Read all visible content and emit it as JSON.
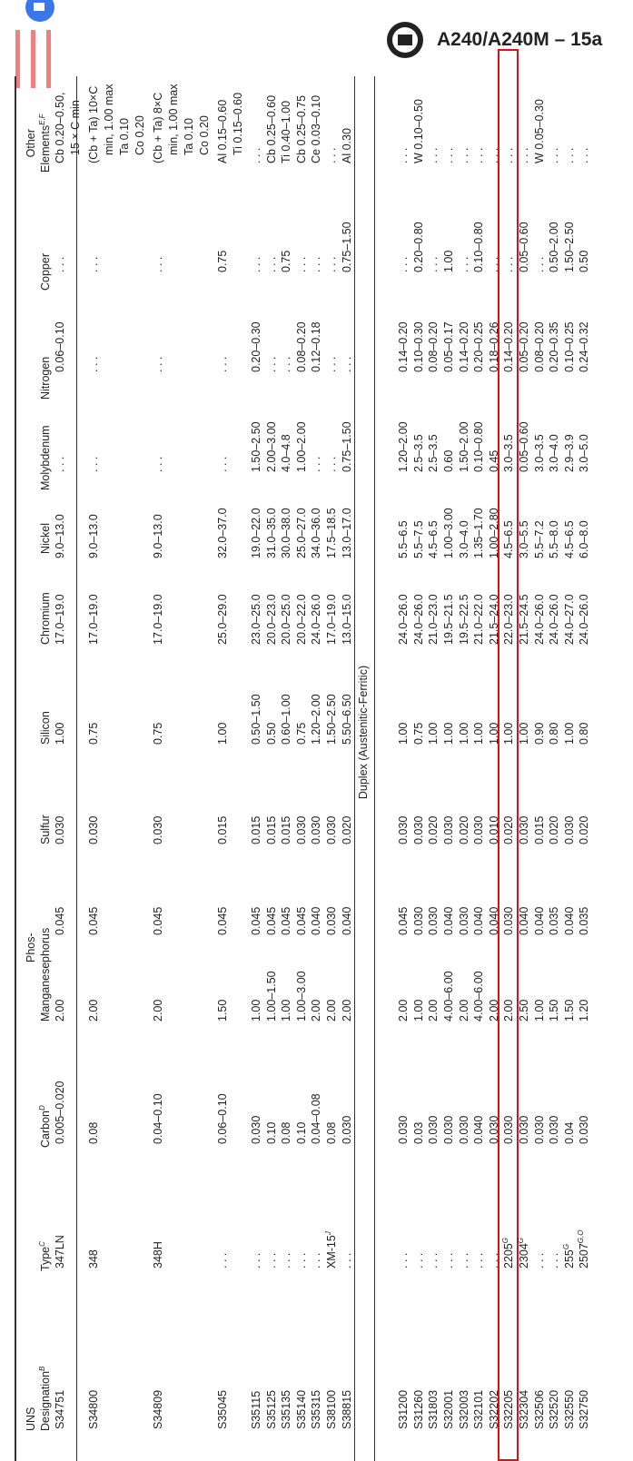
{
  "header": {
    "title": "A240/A240M – 15a"
  },
  "table": {
    "columns": [
      {
        "lines": [
          "UNS",
          "Designation"
        ],
        "sup": "B"
      },
      {
        "lines": [
          "Type"
        ],
        "sup": "C"
      },
      {
        "lines": [
          "Carbon"
        ],
        "sup": "D"
      },
      {
        "lines": [
          "Manganese"
        ]
      },
      {
        "lines": [
          "Phos-",
          "phorus"
        ]
      },
      {
        "lines": [
          "Sulfur"
        ]
      },
      {
        "lines": [
          "Silicon"
        ]
      },
      {
        "lines": [
          "Chromium"
        ]
      },
      {
        "lines": [
          "Nickel"
        ]
      },
      {
        "lines": [
          "Molybdenum"
        ]
      },
      {
        "lines": [
          "Nitrogen"
        ]
      },
      {
        "lines": [
          "Copper"
        ]
      },
      {
        "lines": [
          "Other",
          "Elements"
        ],
        "sup": "E,F"
      }
    ],
    "rows": [
      {
        "cells": [
          "S34751",
          "347LN",
          "0.005–0.020",
          "2.00",
          "0.045",
          "0.030",
          "1.00",
          "17.0–19.0",
          "9.0–13.0",
          ". . .",
          "0.06–0.10",
          ". . .",
          [
            "Cb 0.20–0.50,",
            "15 × C min"
          ]
        ]
      },
      {
        "cells": [
          "S34800",
          "348",
          "0.08",
          "2.00",
          "0.045",
          "0.030",
          "0.75",
          "17.0–19.0",
          "9.0–13.0",
          ". . .",
          ". . .",
          ". . .",
          [
            "(Cb + Ta) 10×C",
            "min, 1.00 max",
            "Ta 0.10",
            "Co 0.20"
          ]
        ]
      },
      {
        "cells": [
          "S34809",
          "348H",
          "0.04–0.10",
          "2.00",
          "0.045",
          "0.030",
          "0.75",
          "17.0–19.0",
          "9.0–13.0",
          ". . .",
          ". . .",
          ". . .",
          [
            "(Cb + Ta) 8×C",
            "min, 1.00 max",
            "Ta 0.10",
            "Co 0.20"
          ]
        ]
      },
      {
        "cells": [
          "S35045",
          ". . .",
          "0.06–0.10",
          "1.50",
          "0.045",
          "0.015",
          "1.00",
          "25.0–29.0",
          "32.0–37.0",
          ". . .",
          ". . .",
          "0.75",
          [
            "Al 0.15–0.60",
            "Ti 0.15–0.60"
          ]
        ]
      },
      {
        "cells": [
          "S35115",
          ". . .",
          "0.030",
          "1.00",
          "0.045",
          "0.015",
          "0.50–1.50",
          "23.0–25.0",
          "19.0–22.0",
          "1.50–2.50",
          "0.20–0.30",
          ". . .",
          ". . ."
        ]
      },
      {
        "cells": [
          "S35125",
          ". . .",
          "0.10",
          "1.00–1.50",
          "0.045",
          "0.015",
          "0.50",
          "20.0–23.0",
          "31.0–35.0",
          "2.00–3.00",
          ". . .",
          ". . .",
          "Cb 0.25–0.60"
        ]
      },
      {
        "cells": [
          "S35135",
          ". . .",
          "0.08",
          "1.00",
          "0.045",
          "0.015",
          "0.60–1.00",
          "20.0–25.0",
          "30.0–38.0",
          "4.0–4.8",
          ". . .",
          "0.75",
          "Ti 0.40–1.00"
        ]
      },
      {
        "cells": [
          "S35140",
          ". . .",
          "0.10",
          "1.00–3.00",
          "0.045",
          "0.030",
          "0.75",
          "20.0–22.0",
          "25.0–27.0",
          "1.00–2.00",
          "0.08–0.20",
          ". . .",
          "Cb 0.25–0.75"
        ]
      },
      {
        "cells": [
          "S35315",
          ". . .",
          "0.04–0.08",
          "2.00",
          "0.040",
          "0.030",
          "1.20–2.00",
          "24.0–26.0",
          "34.0–36.0",
          ". . .",
          "0.12–0.18",
          ". . .",
          "Ce 0.03–0.10"
        ]
      },
      {
        "cells": [
          "S38100",
          {
            "text": "XM-15",
            "sup": "J"
          },
          "0.08",
          "2.00",
          "0.030",
          "0.030",
          "1.50–2.50",
          "17.0–19.0",
          "17.5–18.5",
          ". . .",
          ". . .",
          ". . .",
          ". . ."
        ]
      },
      {
        "cells": [
          "S38815",
          ". . .",
          "0.030",
          "2.00",
          "0.040",
          "0.020",
          "5.50–6.50",
          "13.0–15.0",
          "13.0–17.0",
          "0.75–1.50",
          ". . .",
          "0.75–1.50",
          "Al 0.30"
        ]
      },
      {
        "section": "Duplex (Austenitic-Ferritic)"
      },
      {
        "cells": [
          "S31200",
          ". . .",
          "0.030",
          "2.00",
          "0.045",
          "0.030",
          "1.00",
          "24.0–26.0",
          "5.5–6.5",
          "1.20–2.00",
          "0.14–0.20",
          ". . .",
          ". . ."
        ]
      },
      {
        "cells": [
          "S31260",
          ". . .",
          "0.03",
          "1.00",
          "0.030",
          "0.030",
          "0.75",
          "24.0–26.0",
          "5.5–7.5",
          "2.5–3.5",
          "0.10–0.30",
          "0.20–0.80",
          "W 0.10–0.50"
        ]
      },
      {
        "cells": [
          "S31803",
          ". . .",
          "0.030",
          "2.00",
          "0.030",
          "0.020",
          "1.00",
          "21.0–23.0",
          "4.5–6.5",
          "2.5–3.5",
          "0.08–0.20",
          ". . .",
          ". . ."
        ]
      },
      {
        "cells": [
          "S32001",
          ". . .",
          "0.030",
          "4.00–6.00",
          "0.040",
          "0.030",
          "1.00",
          "19.5–21.5",
          "1.00–3.00",
          "0.60",
          "0.05–0.17",
          "1.00",
          ". . ."
        ]
      },
      {
        "cells": [
          "S32003",
          ". . .",
          "0.030",
          "2.00",
          "0.030",
          "0.020",
          "1.00",
          "19.5–22.5",
          "3.0–4.0",
          "1.50–2.00",
          "0.14–0.20",
          ". . .",
          ". . ."
        ]
      },
      {
        "cells": [
          "S32101",
          ". . .",
          "0.040",
          "4.00–6.00",
          "0.040",
          "0.030",
          "1.00",
          "21.0–22.0",
          "1.35–1.70",
          "0.10–0.80",
          "0.20–0.25",
          "0.10–0.80",
          ". . ."
        ]
      },
      {
        "cells": [
          "S32202",
          ". . .",
          "0.030",
          "2.00",
          "0.040",
          "0.010",
          "1.00",
          "21.5–24.0",
          "1.00–2.80",
          "0.45",
          "0.18–0.26",
          ". . .",
          ". . ."
        ]
      },
      {
        "cells": [
          "S32205",
          {
            "text": "2205",
            "sup": "G"
          },
          "0.030",
          "2.00",
          "0.030",
          "0.020",
          "1.00",
          "22.0–23.0",
          "4.5–6.5",
          "3.0–3.5",
          "0.14–0.20",
          ". . .",
          ". . ."
        ]
      },
      {
        "cells": [
          "S32304",
          {
            "text": "2304",
            "sup": "G"
          },
          "0.030",
          "2.50",
          "0.040",
          "0.030",
          "1.00",
          "21.5–24.5",
          "3.0–5.5",
          "0.05–0.60",
          "0.05–0.20",
          "0.05–0.60",
          ". . ."
        ]
      },
      {
        "cells": [
          "S32506",
          ". . .",
          "0.030",
          "1.00",
          "0.040",
          "0.015",
          "0.90",
          "24.0–26.0",
          "5.5–7.2",
          "3.0–3.5",
          "0.08–0.20",
          ". . .",
          "W 0.05–0.30"
        ]
      },
      {
        "cells": [
          "S32520",
          ". . .",
          "0.030",
          "1.50",
          "0.035",
          "0.020",
          "0.80",
          "24.0–26.0",
          "5.5–8.0",
          "3.0–4.0",
          "0.20–0.35",
          "0.50–2.00",
          ". . ."
        ]
      },
      {
        "cells": [
          "S32550",
          {
            "text": "255",
            "sup": "G"
          },
          "0.04",
          "1.50",
          "0.040",
          "0.030",
          "1.00",
          "24.0–27.0",
          "4.5–6.5",
          "2.9–3.9",
          "0.10–0.25",
          "1.50–2.50",
          ". . ."
        ]
      },
      {
        "cells": [
          "S32750",
          {
            "text": "2507",
            "sup": "G,O"
          },
          "0.030",
          "1.20",
          "0.035",
          "0.020",
          "0.80",
          "24.0–26.0",
          "6.0–8.0",
          "3.0–5.0",
          "0.24–0.32",
          "0.50",
          ". . ."
        ]
      }
    ],
    "highlighted_row": "S32205"
  }
}
